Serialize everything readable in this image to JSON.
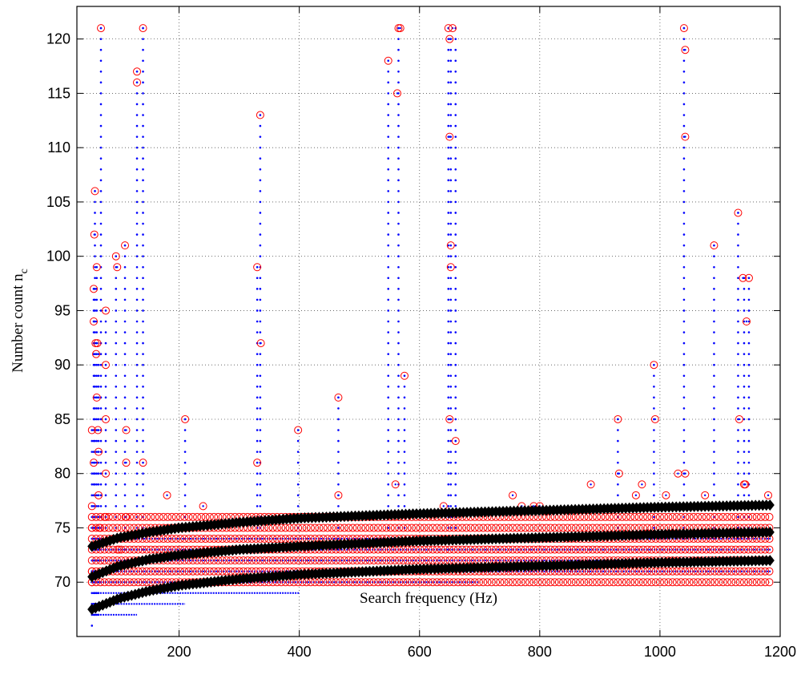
{
  "chart_data": {
    "type": "scatter",
    "title": "",
    "xlabel": "Search frequency (Hz)",
    "ylabel_main": "Number count n",
    "ylabel_sub": "c",
    "xlim": [
      30,
      1200
    ],
    "ylim": [
      65,
      123
    ],
    "xticks": [
      200,
      400,
      600,
      800,
      1000,
      1200
    ],
    "yticks": [
      70,
      75,
      80,
      85,
      90,
      95,
      100,
      105,
      110,
      115,
      120
    ],
    "grid": true,
    "colors": {
      "dots": "#0000ff",
      "circles": "#ff0000",
      "diamonds": "#000000"
    },
    "series": [
      {
        "marker": "dot",
        "description_of_band": "horizontal bands",
        "bands": [
          {
            "y": 67,
            "x_range": [
              60,
              130
            ]
          },
          {
            "y": 68,
            "x_range": [
              60,
              210
            ]
          },
          {
            "y": 69,
            "x_range": [
              60,
              400
            ]
          },
          {
            "y": 70,
            "x_range": [
              60,
              700
            ]
          },
          {
            "y": 71,
            "x_range": [
              60,
              1185
            ]
          },
          {
            "y": 72,
            "x_range": [
              60,
              1185
            ]
          },
          {
            "y": 73,
            "x_range": [
              60,
              1185
            ]
          },
          {
            "y": 74,
            "x_range": [
              60,
              1185
            ]
          }
        ],
        "columns": [
          {
            "x": 55,
            "y_range": [
              66,
              84
            ]
          },
          {
            "x": 58,
            "y_range": [
              67,
              97
            ]
          },
          {
            "x": 60,
            "y_range": [
              67,
              106
            ]
          },
          {
            "x": 63,
            "y_range": [
              67,
              99
            ]
          },
          {
            "x": 66,
            "y_range": [
              67,
              91
            ]
          },
          {
            "x": 70,
            "y_range": [
              70,
              121
            ]
          },
          {
            "x": 78,
            "y_range": [
              72,
              95
            ]
          },
          {
            "x": 95,
            "y_range": [
              70,
              100
            ]
          },
          {
            "x": 110,
            "y_range": [
              72,
              101
            ]
          },
          {
            "x": 130,
            "y_range": [
              72,
              117
            ]
          },
          {
            "x": 140,
            "y_range": [
              72,
              121
            ]
          },
          {
            "x": 210,
            "y_range": [
              73,
              85
            ]
          },
          {
            "x": 330,
            "y_range": [
              73,
              99
            ]
          },
          {
            "x": 335,
            "y_range": [
              74,
              113
            ]
          },
          {
            "x": 398,
            "y_range": [
              73,
              84
            ]
          },
          {
            "x": 465,
            "y_range": [
              73,
              87
            ]
          },
          {
            "x": 548,
            "y_range": [
              74,
              118
            ]
          },
          {
            "x": 565,
            "y_range": [
              74,
              121
            ]
          },
          {
            "x": 575,
            "y_range": [
              74,
              89
            ]
          },
          {
            "x": 648,
            "y_range": [
              73,
              121
            ]
          },
          {
            "x": 652,
            "y_range": [
              74,
              120
            ]
          },
          {
            "x": 660,
            "y_range": [
              74,
              121
            ]
          },
          {
            "x": 930,
            "y_range": [
              74,
              85
            ]
          },
          {
            "x": 990,
            "y_range": [
              74,
              90
            ]
          },
          {
            "x": 1040,
            "y_range": [
              74,
              121
            ]
          },
          {
            "x": 1090,
            "y_range": [
              74,
              101
            ]
          },
          {
            "x": 1130,
            "y_range": [
              74,
              104
            ]
          },
          {
            "x": 1140,
            "y_range": [
              74,
              98
            ]
          },
          {
            "x": 1148,
            "y_range": [
              74,
              98
            ]
          }
        ]
      },
      {
        "marker": "circle",
        "points": [
          [
            55,
            70
          ],
          [
            55,
            71
          ],
          [
            55,
            75
          ],
          [
            55,
            77
          ],
          [
            55,
            84
          ],
          [
            58,
            81
          ],
          [
            58,
            94
          ],
          [
            58,
            97
          ],
          [
            59,
            102
          ],
          [
            60,
            106
          ],
          [
            61,
            92
          ],
          [
            62,
            91
          ],
          [
            63,
            99
          ],
          [
            63,
            87
          ],
          [
            64,
            92
          ],
          [
            65,
            84
          ],
          [
            66,
            82
          ],
          [
            66,
            78
          ],
          [
            67,
            75
          ],
          [
            70,
            121
          ],
          [
            78,
            95
          ],
          [
            78,
            90
          ],
          [
            78,
            85
          ],
          [
            78,
            80
          ],
          [
            78,
            76
          ],
          [
            95,
            100
          ],
          [
            97,
            99
          ],
          [
            100,
            73
          ],
          [
            110,
            101
          ],
          [
            112,
            84
          ],
          [
            112,
            81
          ],
          [
            112,
            76
          ],
          [
            130,
            117
          ],
          [
            130,
            116
          ],
          [
            140,
            121
          ],
          [
            140,
            81
          ],
          [
            180,
            78
          ],
          [
            210,
            85
          ],
          [
            240,
            77
          ],
          [
            330,
            99
          ],
          [
            330,
            81
          ],
          [
            335,
            113
          ],
          [
            336,
            92
          ],
          [
            398,
            84
          ],
          [
            465,
            87
          ],
          [
            465,
            78
          ],
          [
            548,
            118
          ],
          [
            560,
            79
          ],
          [
            563,
            115
          ],
          [
            565,
            121
          ],
          [
            568,
            121
          ],
          [
            575,
            89
          ],
          [
            648,
            121
          ],
          [
            650,
            120
          ],
          [
            650,
            111
          ],
          [
            652,
            101
          ],
          [
            652,
            99
          ],
          [
            650,
            85
          ],
          [
            655,
            121
          ],
          [
            660,
            83
          ],
          [
            640,
            77
          ],
          [
            755,
            78
          ],
          [
            770,
            77
          ],
          [
            790,
            77
          ],
          [
            800,
            77
          ],
          [
            885,
            79
          ],
          [
            930,
            85
          ],
          [
            932,
            80
          ],
          [
            960,
            78
          ],
          [
            970,
            79
          ],
          [
            990,
            90
          ],
          [
            992,
            85
          ],
          [
            1010,
            78
          ],
          [
            1030,
            80
          ],
          [
            1042,
            80
          ],
          [
            1040,
            121
          ],
          [
            1042,
            119
          ],
          [
            1042,
            111
          ],
          [
            1075,
            78
          ],
          [
            1090,
            101
          ],
          [
            1130,
            104
          ],
          [
            1132,
            85
          ],
          [
            1138,
            98
          ],
          [
            1140,
            79
          ],
          [
            1142,
            79
          ],
          [
            1144,
            94
          ],
          [
            1148,
            98
          ],
          [
            1180,
            78
          ]
        ],
        "bands_y": [
          70,
          71,
          72,
          73,
          74,
          75,
          76
        ],
        "bands_x_range": [
          55,
          1185
        ]
      },
      {
        "marker": "diamond",
        "curves": [
          {
            "x": [
              55,
              100,
              150,
              200,
              300,
              400,
              600,
              800,
              1000,
              1185
            ],
            "y": [
              67.5,
              68.5,
              69.2,
              69.7,
              70.3,
              70.7,
              71.2,
              71.5,
              71.8,
              72.0
            ]
          },
          {
            "x": [
              55,
              100,
              150,
              200,
              300,
              400,
              600,
              800,
              1000,
              1185
            ],
            "y": [
              70.5,
              71.5,
              72.1,
              72.5,
              73.0,
              73.3,
              73.8,
              74.1,
              74.4,
              74.6
            ]
          },
          {
            "x": [
              55,
              100,
              150,
              200,
              300,
              400,
              600,
              800,
              1000,
              1185
            ],
            "y": [
              73.3,
              74.1,
              74.6,
              75.0,
              75.5,
              75.9,
              76.3,
              76.6,
              76.9,
              77.1
            ]
          }
        ]
      }
    ]
  }
}
